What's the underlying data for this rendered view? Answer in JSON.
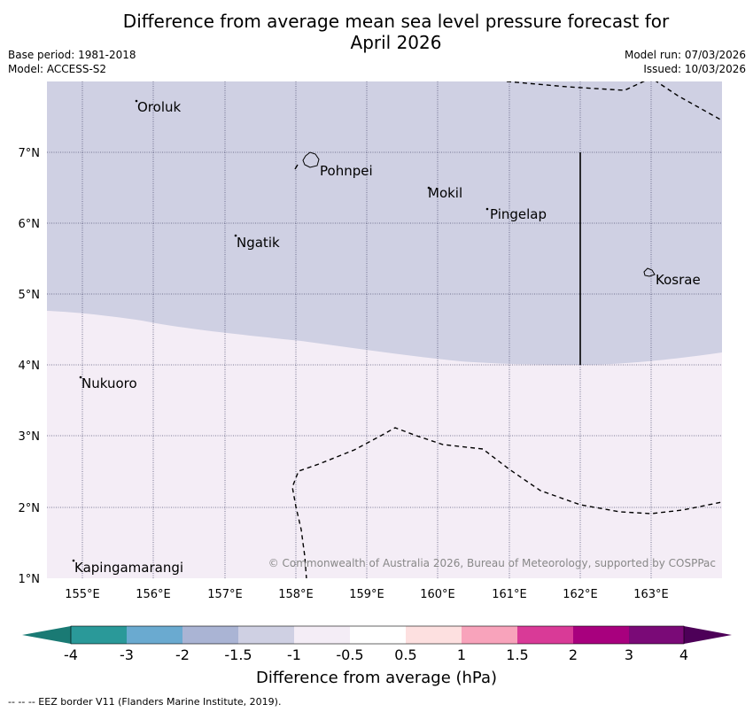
{
  "title_line1": "Difference from average mean sea level pressure forecast for",
  "title_line2": "April 2026",
  "base_period": "Base period: 1981-2018",
  "model": "Model: ACCESS-S2",
  "model_run": "Model run: 07/03/2026",
  "issued": "Issued: 10/03/2026",
  "copyright": "© Commonwealth of Australia 2026, Bureau of Meteorology, supported by COSPPac",
  "colors": {
    "band_neg1_to_neg05": "#cfd0e3",
    "band_neg05_to_05": "#f4edf6",
    "contour": "#000000",
    "grid": "#555577"
  },
  "lat_labels": [
    "7°N",
    "6°N",
    "5°N",
    "4°N",
    "3°N",
    "2°N",
    "1°N"
  ],
  "lon_labels": [
    "155°E",
    "156°E",
    "157°E",
    "158°E",
    "159°E",
    "160°E",
    "161°E",
    "162°E",
    "163°E"
  ],
  "places": [
    {
      "name": "Oroluk"
    },
    {
      "name": "Pohnpei"
    },
    {
      "name": "Mokil"
    },
    {
      "name": "Pingelap"
    },
    {
      "name": "Ngatik"
    },
    {
      "name": "Kosrae"
    },
    {
      "name": "Nukuoro"
    },
    {
      "name": "Kapingamarangi"
    }
  ],
  "colorbar": {
    "ticks": [
      "-4",
      "-3",
      "-2",
      "-1.5",
      "-1",
      "-0.5",
      "0.5",
      "1",
      "1.5",
      "2",
      "3",
      "4"
    ],
    "colors": [
      "#1a7a74",
      "#2a9999",
      "#6aaad0",
      "#aab4d4",
      "#cfd0e3",
      "#f4edf6",
      "#ffffff",
      "#fde0e0",
      "#f8a3bb",
      "#d93a97",
      "#a8007e",
      "#7a0a77",
      "#4d0058"
    ],
    "label": "Difference from average (hPa)"
  },
  "footnote": "--  --  -- EEZ border V11 (Flanders Marine Institute, 2019)."
}
